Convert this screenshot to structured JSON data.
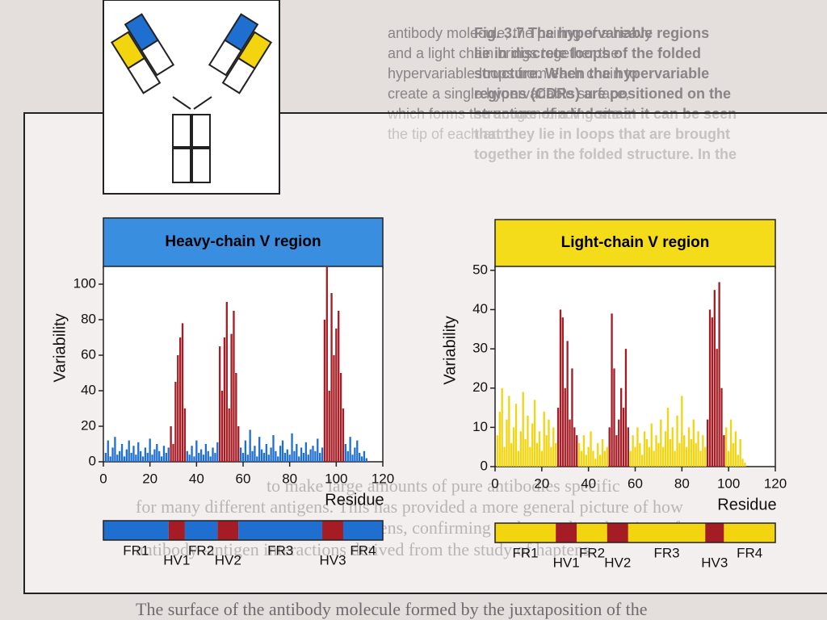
{
  "page_text": {
    "caption": [
      "Fig. 3.7 The hypervariable regions",
      "lie in discrete loops of the folded",
      "structure. When the hypervariable",
      "regions (CDRs) are positioned on the",
      "structure of a V domain it can be seen",
      "that they lie in loops that are brought",
      "together in the folded structure. In the"
    ],
    "column": [
      "antibody molecule, the pairing of a heavy",
      "and a light chain brings together the",
      "hypervariable loops from each chain to",
      "create a single hypervariable surface,",
      "which forms the antigen-binding site at",
      "the tip of each arm."
    ],
    "body": [
      "to make large amounts of pure antibodies specific",
      "for many different antigens. This has provided a more general picture of how",
      "antibodies interact with their antigens, confirming and extending the view of",
      "antibody–antigen interactions derived from the study of haptens.",
      "The surface of the antibody molecule formed by the juxtaposition of the"
    ]
  },
  "chart_data": [
    {
      "type": "bar",
      "title": "Heavy-chain  V  region",
      "ylabel": "Variability",
      "xlabel": "Residue",
      "color": "#1f6fd0",
      "header_color": "#3a8ee0",
      "xlim": [
        0,
        120
      ],
      "xticks": [
        0,
        20,
        40,
        60,
        80,
        100,
        120
      ],
      "ylim": [
        0,
        110
      ],
      "yticks": [
        0,
        20,
        40,
        60,
        80,
        100
      ],
      "x": [
        1,
        2,
        3,
        4,
        5,
        6,
        7,
        8,
        9,
        10,
        11,
        12,
        13,
        14,
        15,
        16,
        17,
        18,
        19,
        20,
        21,
        22,
        23,
        24,
        25,
        26,
        27,
        28,
        29,
        30,
        31,
        32,
        33,
        34,
        35,
        36,
        37,
        38,
        39,
        40,
        41,
        42,
        43,
        44,
        45,
        46,
        47,
        48,
        49,
        50,
        51,
        52,
        53,
        54,
        55,
        56,
        57,
        58,
        59,
        60,
        61,
        62,
        63,
        64,
        65,
        66,
        67,
        68,
        69,
        70,
        71,
        72,
        73,
        74,
        75,
        76,
        77,
        78,
        79,
        80,
        81,
        82,
        83,
        84,
        85,
        86,
        87,
        88,
        89,
        90,
        91,
        92,
        93,
        94,
        95,
        96,
        97,
        98,
        99,
        100,
        101,
        102,
        103,
        104,
        105,
        106,
        107,
        108,
        109,
        110,
        111,
        112,
        113
      ],
      "values": [
        5,
        12,
        3,
        8,
        14,
        4,
        6,
        10,
        3,
        7,
        12,
        5,
        9,
        4,
        11,
        6,
        3,
        8,
        5,
        13,
        4,
        7,
        10,
        6,
        3,
        9,
        5,
        8,
        20,
        10,
        45,
        60,
        70,
        78,
        30,
        6,
        4,
        9,
        3,
        12,
        5,
        7,
        4,
        10,
        6,
        3,
        8,
        5,
        11,
        65,
        40,
        70,
        90,
        30,
        72,
        85,
        50,
        20,
        8,
        5,
        12,
        4,
        18,
        6,
        9,
        3,
        14,
        7,
        5,
        10,
        4,
        8,
        15,
        6,
        3,
        9,
        12,
        5,
        7,
        4,
        16,
        6,
        10,
        3,
        8,
        5,
        11,
        4,
        7,
        9,
        6,
        13,
        5,
        8,
        80,
        110,
        40,
        95,
        60,
        75,
        85,
        50,
        30,
        10,
        6,
        14,
        4,
        8,
        12,
        5,
        3,
        6,
        2
      ],
      "regions": [
        {
          "label": "FR1",
          "start": 0,
          "end": 28,
          "color": "#1f6fd0"
        },
        {
          "label": "HV1",
          "start": 28,
          "end": 35,
          "color": "#a51c24"
        },
        {
          "label": "FR2",
          "start": 35,
          "end": 49,
          "color": "#1f6fd0"
        },
        {
          "label": "HV2",
          "start": 49,
          "end": 58,
          "color": "#a51c24"
        },
        {
          "label": "FR3",
          "start": 58,
          "end": 94,
          "color": "#1f6fd0"
        },
        {
          "label": "HV3",
          "start": 94,
          "end": 103,
          "color": "#a51c24"
        },
        {
          "label": "FR4",
          "start": 103,
          "end": 120,
          "color": "#1f6fd0"
        }
      ]
    },
    {
      "type": "bar",
      "title": "Light-chain  V  region",
      "ylabel": "Variability",
      "xlabel": "Residue",
      "color": "#f2d40f",
      "header_color": "#f5dc1a",
      "xlim": [
        0,
        120
      ],
      "xticks": [
        0,
        20,
        40,
        60,
        80,
        100,
        120
      ],
      "ylim": [
        0,
        51
      ],
      "yticks": [
        0,
        10,
        20,
        30,
        40,
        50
      ],
      "x": [
        1,
        2,
        3,
        4,
        5,
        6,
        7,
        8,
        9,
        10,
        11,
        12,
        13,
        14,
        15,
        16,
        17,
        18,
        19,
        20,
        21,
        22,
        23,
        24,
        25,
        26,
        27,
        28,
        29,
        30,
        31,
        32,
        33,
        34,
        35,
        36,
        37,
        38,
        39,
        40,
        41,
        42,
        43,
        44,
        45,
        46,
        47,
        48,
        49,
        50,
        51,
        52,
        53,
        54,
        55,
        56,
        57,
        58,
        59,
        60,
        61,
        62,
        63,
        64,
        65,
        66,
        67,
        68,
        69,
        70,
        71,
        72,
        73,
        74,
        75,
        76,
        77,
        78,
        79,
        80,
        81,
        82,
        83,
        84,
        85,
        86,
        87,
        88,
        89,
        90,
        91,
        92,
        93,
        94,
        95,
        96,
        97,
        98,
        99,
        100,
        101,
        102,
        103,
        104,
        105,
        106,
        107,
        108
      ],
      "values": [
        8,
        14,
        20,
        5,
        12,
        18,
        6,
        10,
        16,
        4,
        9,
        19,
        7,
        13,
        5,
        11,
        17,
        6,
        9,
        4,
        14,
        8,
        12,
        5,
        10,
        6,
        15,
        40,
        38,
        20,
        32,
        12,
        25,
        10,
        8,
        6,
        4,
        8,
        3,
        5,
        9,
        4,
        2,
        6,
        3,
        7,
        4,
        5,
        10,
        39,
        25,
        8,
        12,
        20,
        15,
        30,
        10,
        4,
        8,
        5,
        10,
        6,
        3,
        9,
        7,
        5,
        11,
        4,
        8,
        6,
        12,
        5,
        9,
        15,
        7,
        10,
        4,
        13,
        6,
        18,
        8,
        5,
        10,
        7,
        12,
        6,
        9,
        4,
        8,
        5,
        12,
        40,
        38,
        45,
        30,
        47,
        20,
        8,
        10,
        4,
        12,
        6,
        9,
        3,
        7,
        2,
        1,
        0
      ],
      "regions": [
        {
          "label": "FR1",
          "start": 0,
          "end": 26,
          "color": "#f2d40f"
        },
        {
          "label": "HV1",
          "start": 26,
          "end": 35,
          "color": "#a51c24"
        },
        {
          "label": "FR2",
          "start": 35,
          "end": 48,
          "color": "#f2d40f"
        },
        {
          "label": "HV2",
          "start": 48,
          "end": 57,
          "color": "#a51c24"
        },
        {
          "label": "FR3",
          "start": 57,
          "end": 90,
          "color": "#f2d40f"
        },
        {
          "label": "HV3",
          "start": 90,
          "end": 98,
          "color": "#a51c24"
        },
        {
          "label": "FR4",
          "start": 98,
          "end": 120,
          "color": "#f2d40f"
        }
      ]
    }
  ]
}
